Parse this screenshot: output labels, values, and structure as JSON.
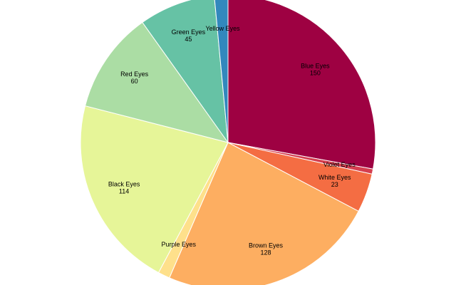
{
  "chart_data": {
    "type": "pie",
    "categories": [
      "Blue Eyes",
      "Violet Eyes",
      "White Eyes",
      "Brown Eyes",
      "Purple Eyes",
      "Black Eyes",
      "Red Eyes",
      "Green Eyes",
      "Yellow Eyes"
    ],
    "values": [
      150,
      3,
      23,
      128,
      7,
      114,
      60,
      45,
      8
    ],
    "value_labels": [
      "150",
      null,
      "23",
      "128",
      null,
      "114",
      "60",
      "45",
      null
    ],
    "colors": [
      "#9e0142",
      "#d53e4f",
      "#f46d43",
      "#fdae61",
      "#fee08b",
      "#e6f598",
      "#abdda4",
      "#66c2a5",
      "#3288bd"
    ]
  }
}
